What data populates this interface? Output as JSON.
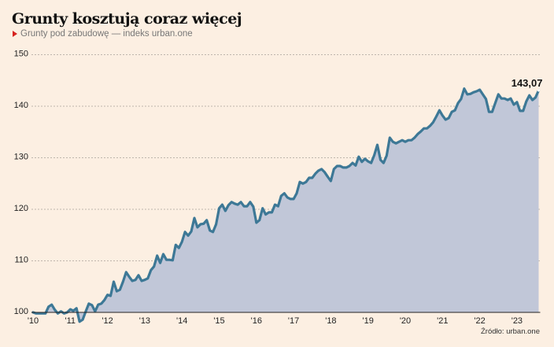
{
  "chart_data": {
    "type": "area",
    "title": "Grunty kosztują coraz więcej",
    "subtitle": "Grunty pod zabudowę — indeks urban.one",
    "source": "Źródło: urban.one",
    "xlabel": "",
    "ylabel": "",
    "ylim": [
      100,
      150
    ],
    "y_ticks": [
      "100",
      "110",
      "120",
      "130",
      "140",
      "150"
    ],
    "x_ticks": [
      "'10",
      "'11",
      "'12",
      "'13",
      "'14",
      "'15",
      "'16",
      "'17",
      "'18",
      "'19",
      "'20",
      "'21",
      "'22",
      "'23"
    ],
    "grid": true,
    "last_value_label": "143,07",
    "colors": {
      "line": "#3d7896",
      "fill": "#c1c7d8",
      "background": "#fcefe2",
      "accent": "#d6221f"
    },
    "series": [
      {
        "name": "Grunty pod zabudowę — indeks urban.one",
        "start": "2010-01",
        "frequency": "monthly",
        "values": [
          100.0,
          99.8,
          99.8,
          99.8,
          99.8,
          101.1,
          101.5,
          100.5,
          99.8,
          100.2,
          99.8,
          100.0,
          100.6,
          100.3,
          100.8,
          98.2,
          98.6,
          100.2,
          101.7,
          101.4,
          100.2,
          101.5,
          101.7,
          102.4,
          103.4,
          103.2,
          105.95,
          104.1,
          104.4,
          105.95,
          107.8,
          106.9,
          106.1,
          106.3,
          107.2,
          106.1,
          106.3,
          106.6,
          108.2,
          108.9,
          111.0,
          109.6,
          111.3,
          110.2,
          110.2,
          110.1,
          113.1,
          112.5,
          113.7,
          115.6,
          114.9,
          115.7,
          118.3,
          116.5,
          117.1,
          117.2,
          117.9,
          115.9,
          115.6,
          117.1,
          120.2,
          120.9,
          119.7,
          120.8,
          121.4,
          121.1,
          120.9,
          121.4,
          120.6,
          120.6,
          121.4,
          120.5,
          117.4,
          117.9,
          120.2,
          119.0,
          119.4,
          119.4,
          120.9,
          120.6,
          122.6,
          123.1,
          122.3,
          122.0,
          122.0,
          123.1,
          125.3,
          125.0,
          125.3,
          126.1,
          126.1,
          126.9,
          127.5,
          127.8,
          127.2,
          126.3,
          125.5,
          127.8,
          128.4,
          128.4,
          128.1,
          128.1,
          128.4,
          129.0,
          128.5,
          130.2,
          129.2,
          129.8,
          129.3,
          129.0,
          130.5,
          132.5,
          129.6,
          129.0,
          130.4,
          133.9,
          133.1,
          132.8,
          133.1,
          133.4,
          133.1,
          133.4,
          133.4,
          133.9,
          134.6,
          135.1,
          135.7,
          135.7,
          136.2,
          136.9,
          138.0,
          139.2,
          138.2,
          137.4,
          137.7,
          138.9,
          139.2,
          140.6,
          141.4,
          143.4,
          142.3,
          142.4,
          142.7,
          142.9,
          143.2,
          142.3,
          141.4,
          138.9,
          138.9,
          140.6,
          142.3,
          141.5,
          141.5,
          141.2,
          141.5,
          140.3,
          140.8,
          139.1,
          139.1,
          140.9,
          142.1,
          141.2,
          141.7,
          143.07
        ]
      }
    ]
  }
}
